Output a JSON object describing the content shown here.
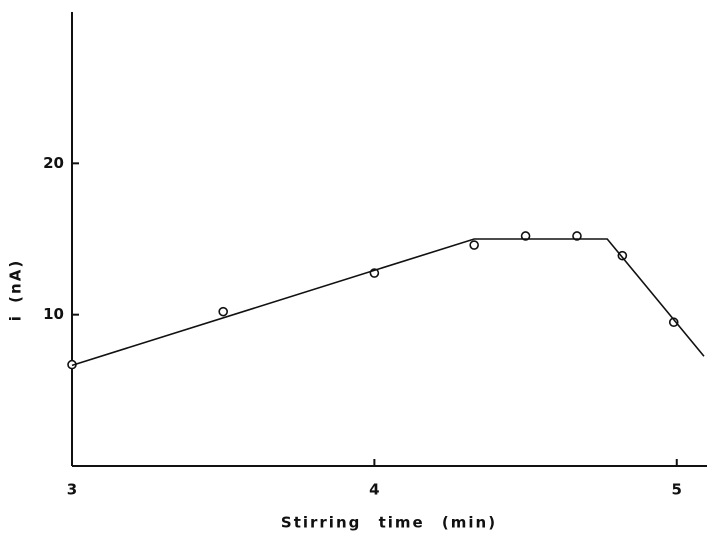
{
  "chart_data": {
    "type": "scatter",
    "x_label": "Stirring time (min)",
    "y_label": "i (nA)",
    "xlim": [
      3,
      5.1
    ],
    "ylim": [
      0,
      30
    ],
    "xticks": [
      3,
      4,
      5
    ],
    "yticks": [
      10,
      20
    ],
    "color": "#111111",
    "series": [
      {
        "style": "markers",
        "x": [
          3,
          3.5,
          4,
          4.33,
          4.5,
          4.67,
          4.82,
          4.99
        ],
        "values": [
          6.7,
          10.2,
          12.75,
          14.6,
          15.2,
          15.2,
          13.9,
          9.5
        ]
      },
      {
        "style": "line",
        "x": [
          3,
          4.33,
          4.77,
          5.09
        ],
        "values": [
          6.65,
          15.0,
          15.0,
          7.25
        ]
      }
    ]
  }
}
